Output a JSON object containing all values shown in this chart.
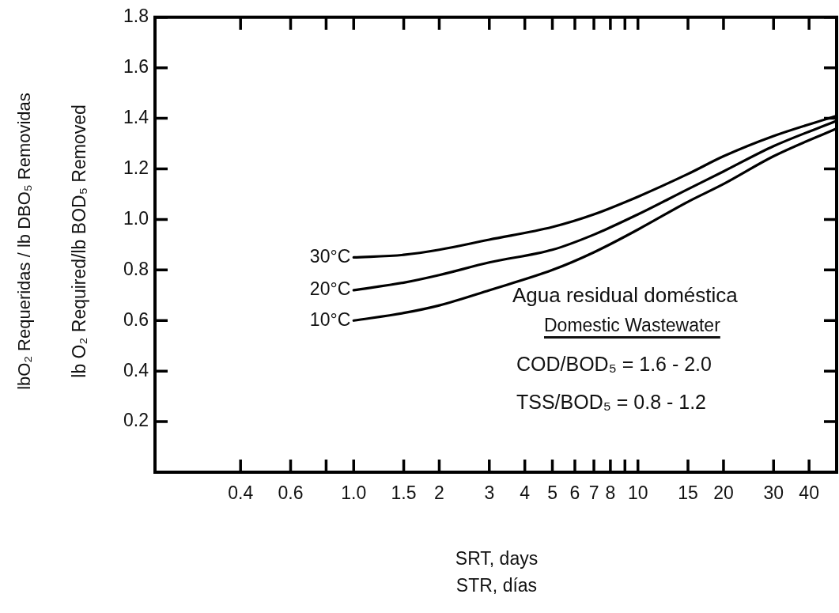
{
  "chart_data": {
    "type": "line",
    "xlabel": "SRT, days",
    "ylabel": "lb O₂ Required/lb BOD₅ Removed",
    "annotations": [
      "lbO₂ Requeridas / lb DBO₅ Removidas",
      "STR, días",
      "Agua residual doméstica",
      "Domestic Wastewater",
      "COD/BOD₅  =  1.6 - 2.0",
      "TSS/BOD₅  =  0.8 - 1.2"
    ],
    "x": [
      1.0,
      1.5,
      2,
      3,
      5,
      7,
      10,
      15,
      20,
      30,
      50
    ],
    "series": [
      {
        "name": "30°C",
        "color": "#000000",
        "values": [
          0.85,
          0.86,
          0.88,
          0.92,
          0.97,
          1.02,
          1.09,
          1.18,
          1.25,
          1.33,
          1.41
        ]
      },
      {
        "name": "20°C",
        "color": "#000000",
        "values": [
          0.72,
          0.75,
          0.78,
          0.83,
          0.88,
          0.94,
          1.02,
          1.12,
          1.19,
          1.29,
          1.39
        ]
      },
      {
        "name": "10°C",
        "color": "#000000",
        "values": [
          0.6,
          0.63,
          0.66,
          0.72,
          0.8,
          0.87,
          0.96,
          1.07,
          1.14,
          1.25,
          1.36
        ]
      }
    ],
    "log": "x",
    "xlim": [
      0.2,
      50
    ],
    "xticks": [
      0.4,
      0.6,
      {
        "value": 0.8,
        "label": null
      },
      {
        "value": 1,
        "label": "1.0"
      },
      1.5,
      2,
      3,
      4,
      5,
      6,
      7,
      8,
      {
        "value": 9,
        "label": null
      },
      10,
      15,
      20,
      30,
      40
    ],
    "ylim": [
      0,
      1.8
    ],
    "yticks": [
      0.2,
      0.4,
      0.6,
      0.8,
      {
        "value": 1,
        "label": "1.0"
      },
      1.2,
      1.4,
      1.6,
      1.8
    ],
    "grid": false,
    "legend": false,
    "marker": "none",
    "line_style": "solid"
  }
}
